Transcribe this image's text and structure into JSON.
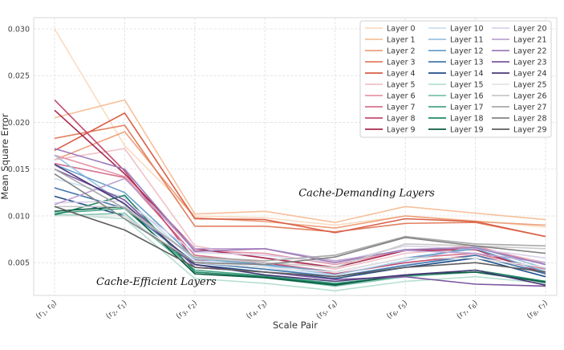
{
  "chart_data": {
    "type": "line",
    "title": "",
    "xlabel": "Scale Pair",
    "ylabel": "Mean Square Error",
    "ylim": [
      0.0015,
      0.0312
    ],
    "yticks": [
      0.005,
      0.01,
      0.015,
      0.02,
      0.025,
      0.03
    ],
    "ytick_labels": [
      "0.005",
      "0.010",
      "0.015",
      "0.020",
      "0.025",
      "0.030"
    ],
    "categories": [
      [
        "r",
        "1",
        "r",
        "0"
      ],
      [
        "r",
        "2",
        "r",
        "1"
      ],
      [
        "r",
        "3",
        "r",
        "2"
      ],
      [
        "r",
        "4",
        "r",
        "3"
      ],
      [
        "r",
        "5",
        "r",
        "4"
      ],
      [
        "r",
        "6",
        "r",
        "5"
      ],
      [
        "r",
        "7",
        "r",
        "6"
      ],
      [
        "r",
        "8",
        "r",
        "7"
      ]
    ],
    "grid": true,
    "legend_position": "top-right",
    "legend_columns": 3,
    "annotations": [
      {
        "text": "Cache-Demanding Layers",
        "x": 4.45,
        "y": 0.0121
      },
      {
        "text": "Cache-Efficient Layers",
        "x": 1.45,
        "y": 0.0026
      }
    ],
    "series": [
      {
        "name": "Layer 0",
        "color": "#fadbc2",
        "values": [
          0.03,
          0.0175,
          0.01,
          0.0098,
          0.009,
          0.01,
          0.0095,
          0.0088
        ]
      },
      {
        "name": "Layer 1",
        "color": "#f6c09a",
        "values": [
          0.0205,
          0.0224,
          0.0102,
          0.0105,
          0.0093,
          0.011,
          0.0103,
          0.0096
        ]
      },
      {
        "name": "Layer 2",
        "color": "#eea07b",
        "values": [
          0.016,
          0.019,
          0.0098,
          0.0094,
          0.0087,
          0.01,
          0.0094,
          0.009
        ]
      },
      {
        "name": "Layer 3",
        "color": "#e3805f",
        "values": [
          0.0183,
          0.0197,
          0.0089,
          0.0089,
          0.0083,
          0.0092,
          0.0093,
          0.0078
        ]
      },
      {
        "name": "Layer 4",
        "color": "#d75e47",
        "values": [
          0.017,
          0.021,
          0.0097,
          0.0096,
          0.0082,
          0.0097,
          0.0094,
          0.0078
        ]
      },
      {
        "name": "Layer 5",
        "color": "#f1c0c8",
        "values": [
          0.016,
          0.0172,
          0.0068,
          0.0055,
          0.0043,
          0.006,
          0.0066,
          0.005
        ]
      },
      {
        "name": "Layer 6",
        "color": "#e597a9",
        "values": [
          0.0165,
          0.0142,
          0.0063,
          0.006,
          0.0048,
          0.0063,
          0.0068,
          0.0048
        ]
      },
      {
        "name": "Layer 7",
        "color": "#d6728d",
        "values": [
          0.0156,
          0.0141,
          0.0058,
          0.005,
          0.004,
          0.0055,
          0.006,
          0.0043
        ]
      },
      {
        "name": "Layer 8",
        "color": "#c44b70",
        "values": [
          0.0224,
          0.0148,
          0.0053,
          0.005,
          0.0038,
          0.005,
          0.0058,
          0.004
        ]
      },
      {
        "name": "Layer 9",
        "color": "#a8294f",
        "values": [
          0.0213,
          0.0145,
          0.0065,
          0.0055,
          0.0045,
          0.0063,
          0.0064,
          0.0038
        ]
      },
      {
        "name": "Layer 10",
        "color": "#c9dff0",
        "values": [
          0.014,
          0.012,
          0.0052,
          0.0045,
          0.0035,
          0.0048,
          0.0055,
          0.0042
        ]
      },
      {
        "name": "Layer 11",
        "color": "#9cc3e1",
        "values": [
          0.0165,
          0.0112,
          0.0054,
          0.0047,
          0.0037,
          0.0052,
          0.0067,
          0.0044
        ]
      },
      {
        "name": "Layer 12",
        "color": "#6aa1cd",
        "values": [
          0.0155,
          0.0125,
          0.0055,
          0.0048,
          0.004,
          0.0055,
          0.0065,
          0.004
        ]
      },
      {
        "name": "Layer 13",
        "color": "#4277ad",
        "values": [
          0.013,
          0.0108,
          0.005,
          0.0043,
          0.0035,
          0.0047,
          0.0058,
          0.0038
        ]
      },
      {
        "name": "Layer 14",
        "color": "#214d87",
        "values": [
          0.0121,
          0.01,
          0.0048,
          0.004,
          0.0033,
          0.0045,
          0.0055,
          0.0035
        ]
      },
      {
        "name": "Layer 15",
        "color": "#b7dfd2",
        "values": [
          0.0102,
          0.0097,
          0.0033,
          0.0028,
          0.002,
          0.003,
          0.0035,
          0.0028
        ]
      },
      {
        "name": "Layer 16",
        "color": "#7cc3ad",
        "values": [
          0.01,
          0.0103,
          0.004,
          0.0034,
          0.0025,
          0.0035,
          0.004,
          0.003
        ]
      },
      {
        "name": "Layer 17",
        "color": "#47a587",
        "values": [
          0.0103,
          0.0108,
          0.0042,
          0.0036,
          0.0028,
          0.0036,
          0.0042,
          0.0029
        ]
      },
      {
        "name": "Layer 18",
        "color": "#238865",
        "values": [
          0.0101,
          0.0122,
          0.004,
          0.0035,
          0.0027,
          0.0036,
          0.0042,
          0.003
        ]
      },
      {
        "name": "Layer 19",
        "color": "#0e5c45",
        "values": [
          0.0105,
          0.011,
          0.0038,
          0.0034,
          0.0026,
          0.0037,
          0.004,
          0.0029
        ]
      },
      {
        "name": "Layer 20",
        "color": "#d8d2e8",
        "values": [
          0.0114,
          0.0116,
          0.0061,
          0.0058,
          0.005,
          0.0068,
          0.0065,
          0.0055
        ]
      },
      {
        "name": "Layer 21",
        "color": "#bea4d2",
        "values": [
          0.0112,
          0.014,
          0.0065,
          0.0065,
          0.0052,
          0.0063,
          0.006,
          0.005
        ]
      },
      {
        "name": "Layer 22",
        "color": "#9d7cba",
        "values": [
          0.0172,
          0.015,
          0.0062,
          0.0065,
          0.005,
          0.0064,
          0.0066,
          0.0048
        ]
      },
      {
        "name": "Layer 23",
        "color": "#7b579f",
        "values": [
          0.015,
          0.0117,
          0.0045,
          0.004,
          0.0032,
          0.0035,
          0.0027,
          0.0025
        ]
      },
      {
        "name": "Layer 24",
        "color": "#4b3879",
        "values": [
          0.0155,
          0.0113,
          0.0048,
          0.0037,
          0.003,
          0.0037,
          0.0042,
          0.0026
        ]
      },
      {
        "name": "Layer 25",
        "color": "#e4e4e4",
        "values": [
          0.01,
          0.01,
          0.005,
          0.0045,
          0.004,
          0.0055,
          0.0055,
          0.0045
        ]
      },
      {
        "name": "Layer 26",
        "color": "#c9c9c9",
        "values": [
          0.011,
          0.011,
          0.0055,
          0.005,
          0.0045,
          0.007,
          0.0068,
          0.0065
        ]
      },
      {
        "name": "Layer 27",
        "color": "#a9a9a9",
        "values": [
          0.015,
          0.0108,
          0.0056,
          0.0052,
          0.0058,
          0.0078,
          0.007,
          0.0068
        ]
      },
      {
        "name": "Layer 28",
        "color": "#848484",
        "values": [
          0.0145,
          0.0097,
          0.005,
          0.0048,
          0.0056,
          0.0077,
          0.0068,
          0.006
        ]
      },
      {
        "name": "Layer 29",
        "color": "#5f5f5f",
        "values": [
          0.011,
          0.0085,
          0.0045,
          0.004,
          0.0035,
          0.0045,
          0.005,
          0.004
        ]
      }
    ]
  }
}
